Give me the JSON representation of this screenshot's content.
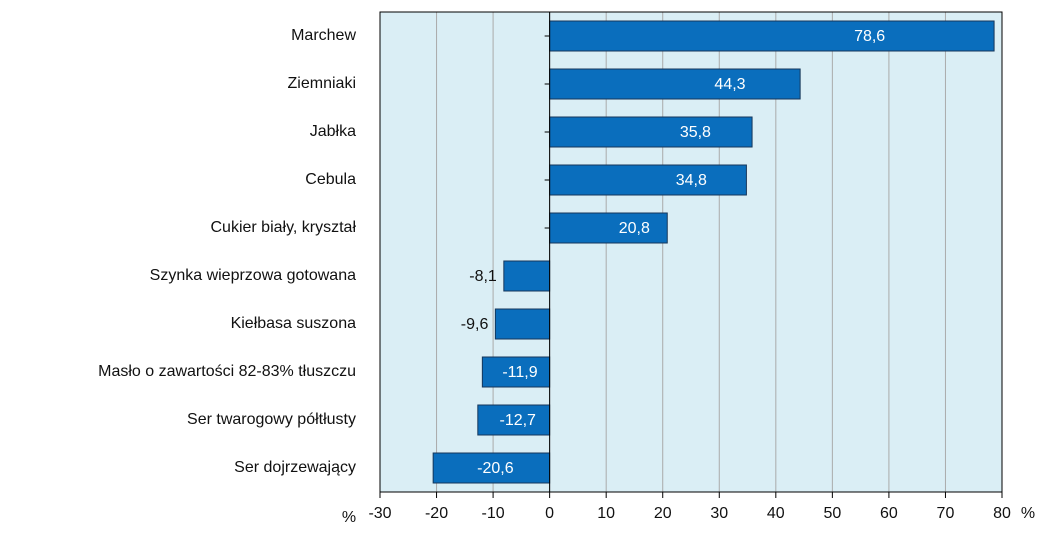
{
  "chart_data": {
    "type": "bar",
    "orientation": "horizontal",
    "categories": [
      "Marchew",
      "Ziemniaki",
      "Jabłka",
      "Cebula",
      "Cukier biały, kryształ",
      "Szynka wieprzowa gotowana",
      "Kiełbasa suszona",
      "Masło o zawartości 82-83% tłuszczu",
      "Ser twarogowy półtłusty",
      "Ser dojrzewający"
    ],
    "values": [
      78.6,
      44.3,
      35.8,
      34.8,
      20.8,
      -8.1,
      -9.6,
      -11.9,
      -12.7,
      -20.6
    ],
    "value_labels": [
      "78,6",
      "44,3",
      "35,8",
      "34,8",
      "20,8",
      "-8,1",
      "-9,6",
      "-11,9",
      "-12,7",
      "-20,6"
    ],
    "color": "#0a6ebd",
    "xlim": [
      -30,
      80
    ],
    "xticks": [
      -30,
      -20,
      -10,
      0,
      10,
      20,
      30,
      40,
      50,
      60,
      70,
      80
    ],
    "x_unit": "%",
    "grid": true
  }
}
